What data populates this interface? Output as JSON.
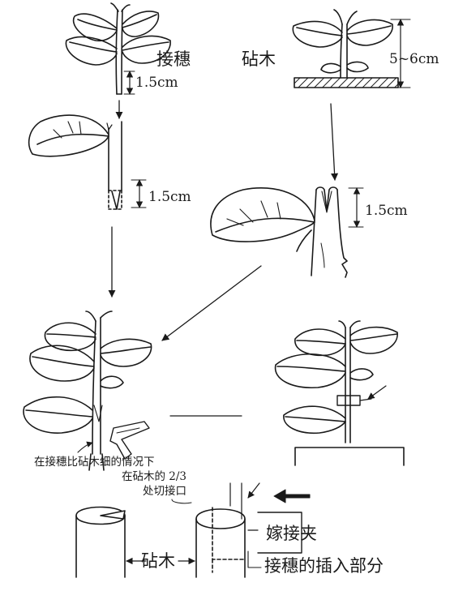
{
  "labels": {
    "scion": "接穗",
    "rootstock_top": "砧木",
    "height_range": "5~6cm",
    "scion_cut_len": "1.5cm",
    "scion_wedge_len": "1.5cm",
    "rootstock_split_len": "1.5cm",
    "note_line1": "在接穗比砧木细的情况下",
    "note_line2": "在砧木的 2/3",
    "note_line3": "处切接口",
    "grafting_clip": "嫁接夹",
    "rootstock_bottom": "砧木",
    "scion_insert_part": "接穗的插入部分"
  },
  "colors": {
    "ink": "#1a1a1a",
    "paper": "#ffffff"
  }
}
